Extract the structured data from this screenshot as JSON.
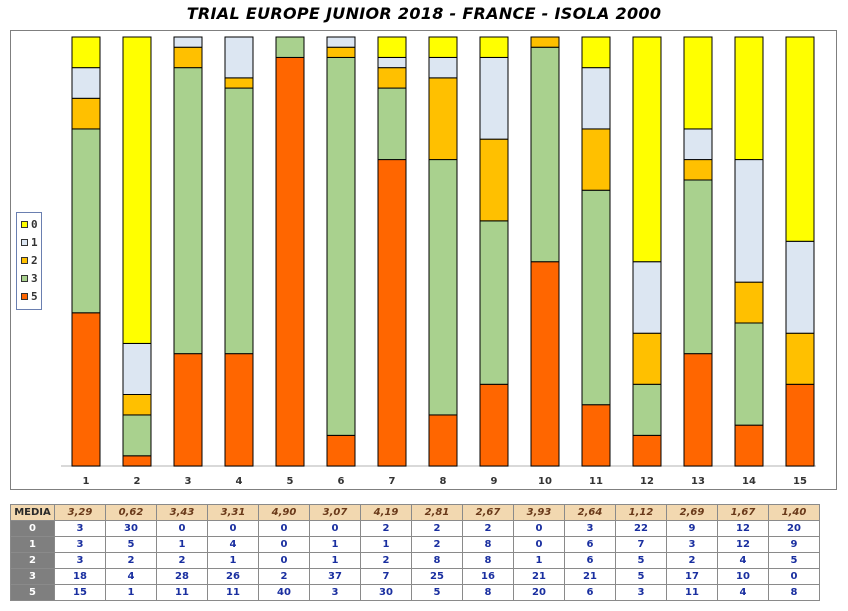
{
  "title": "TRIAL EUROPE JUNIOR 2018 - FRANCE - ISOLA 2000",
  "colors": {
    "0": "#ffff00",
    "1": "#dce6f2",
    "2": "#ffc000",
    "3": "#a9d18e",
    "5": "#ff6600"
  },
  "legend": [
    "0",
    "1",
    "2",
    "3",
    "5"
  ],
  "chart_data": {
    "type": "bar",
    "stacked": true,
    "normalized": true,
    "categories": [
      "1",
      "2",
      "3",
      "4",
      "5",
      "6",
      "7",
      "8",
      "9",
      "10",
      "11",
      "12",
      "13",
      "14",
      "15"
    ],
    "series": [
      {
        "name": "5",
        "values": [
          15,
          1,
          11,
          11,
          40,
          3,
          30,
          5,
          8,
          20,
          6,
          3,
          11,
          4,
          8
        ]
      },
      {
        "name": "3",
        "values": [
          18,
          4,
          28,
          26,
          2,
          37,
          7,
          25,
          16,
          21,
          21,
          5,
          17,
          10,
          0
        ]
      },
      {
        "name": "2",
        "values": [
          3,
          2,
          2,
          1,
          0,
          1,
          2,
          8,
          8,
          1,
          6,
          5,
          2,
          4,
          5
        ]
      },
      {
        "name": "1",
        "values": [
          3,
          5,
          1,
          4,
          0,
          1,
          1,
          2,
          8,
          0,
          6,
          7,
          3,
          12,
          9
        ]
      },
      {
        "name": "0",
        "values": [
          3,
          30,
          0,
          0,
          0,
          0,
          2,
          2,
          2,
          0,
          3,
          22,
          9,
          12,
          20
        ]
      }
    ],
    "ylim": [
      0,
      100
    ]
  },
  "table": {
    "media_label": "MEDIA",
    "media": [
      "3,29",
      "0,62",
      "3,43",
      "3,31",
      "4,90",
      "3,07",
      "4,19",
      "2,81",
      "2,67",
      "3,93",
      "2,64",
      "1,12",
      "2,69",
      "1,67",
      "1,40"
    ],
    "rows": [
      {
        "label": "0",
        "values": [
          "3",
          "30",
          "0",
          "0",
          "0",
          "0",
          "2",
          "2",
          "2",
          "0",
          "3",
          "22",
          "9",
          "12",
          "20"
        ]
      },
      {
        "label": "1",
        "values": [
          "3",
          "5",
          "1",
          "4",
          "0",
          "1",
          "1",
          "2",
          "8",
          "0",
          "6",
          "7",
          "3",
          "12",
          "9"
        ]
      },
      {
        "label": "2",
        "values": [
          "3",
          "2",
          "2",
          "1",
          "0",
          "1",
          "2",
          "8",
          "8",
          "1",
          "6",
          "5",
          "2",
          "4",
          "5"
        ]
      },
      {
        "label": "3",
        "values": [
          "18",
          "4",
          "28",
          "26",
          "2",
          "37",
          "7",
          "25",
          "16",
          "21",
          "21",
          "5",
          "17",
          "10",
          "0"
        ]
      },
      {
        "label": "5",
        "values": [
          "15",
          "1",
          "11",
          "11",
          "40",
          "3",
          "30",
          "5",
          "8",
          "20",
          "6",
          "3",
          "11",
          "4",
          "8"
        ]
      }
    ]
  }
}
